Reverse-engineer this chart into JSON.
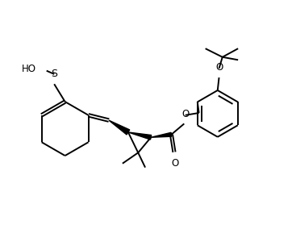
{
  "bg_color": "#ffffff",
  "line_color": "#000000",
  "line_width": 1.4,
  "font_size": 8.5,
  "xlim": [
    0,
    10
  ],
  "ylim": [
    0,
    8.5
  ]
}
